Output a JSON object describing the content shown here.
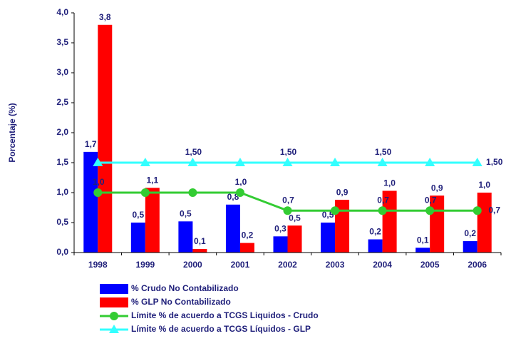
{
  "chart_data": {
    "type": "bar_line",
    "y_label": "Porcentaje (%)",
    "categories": [
      "1998",
      "1999",
      "2000",
      "2001",
      "2002",
      "2003",
      "2004",
      "2005",
      "2006"
    ],
    "series": [
      {
        "name": "% Crudo No Contabilizado",
        "kind": "bar",
        "color": "#0000ff",
        "values": [
          1.68,
          0.5,
          0.52,
          0.8,
          0.27,
          0.5,
          0.22,
          0.08,
          0.19
        ],
        "value_labels": [
          "1,7",
          "0,5",
          "0,5",
          "0,8",
          "0,3",
          "0,5",
          "0,2",
          "0,1",
          "0,2"
        ]
      },
      {
        "name": "% GLP No Contabilizado",
        "kind": "bar",
        "color": "#ff0000",
        "values": [
          3.8,
          1.08,
          0.06,
          0.16,
          0.45,
          0.88,
          1.03,
          0.95,
          1.0
        ],
        "value_labels": [
          "3,8",
          "1,1",
          "0,1",
          "0,2",
          "0,5",
          "0,9",
          "1,0",
          "0,9",
          "1,0"
        ]
      },
      {
        "name": "Límite % de acuerdo a TCGS Liquidos - Crudo",
        "kind": "line",
        "marker": "circle",
        "color": "#33cc33",
        "values": [
          1.0,
          1.0,
          1.0,
          1.0,
          0.7,
          0.7,
          0.7,
          0.7,
          0.7
        ],
        "value_labels": [
          "1,0",
          null,
          null,
          "1,0",
          "0,7",
          null,
          "0,7",
          "0,7",
          "0,7"
        ]
      },
      {
        "name": "Límite % de acuerdo a TCGS Líquidos - GLP",
        "kind": "line",
        "marker": "triangle",
        "color": "#33ffff",
        "values": [
          1.5,
          1.5,
          1.5,
          1.5,
          1.5,
          1.5,
          1.5,
          1.5,
          1.5
        ],
        "value_labels": [
          null,
          null,
          "1,50",
          null,
          "1,50",
          null,
          "1,50",
          null,
          "1,50"
        ]
      }
    ],
    "ylim": [
      0,
      4
    ],
    "yticks": [
      {
        "value": 0,
        "label": "0,0"
      },
      {
        "value": 0.5,
        "label": "0,5"
      },
      {
        "value": 1,
        "label": "1,0"
      },
      {
        "value": 1.5,
        "label": "1,5"
      },
      {
        "value": 2,
        "label": "2,0"
      },
      {
        "value": 2.5,
        "label": "2,5"
      },
      {
        "value": 3,
        "label": "3,0"
      },
      {
        "value": 3.5,
        "label": "3,5"
      },
      {
        "value": 4,
        "label": "4,0"
      }
    ],
    "grid": false
  }
}
